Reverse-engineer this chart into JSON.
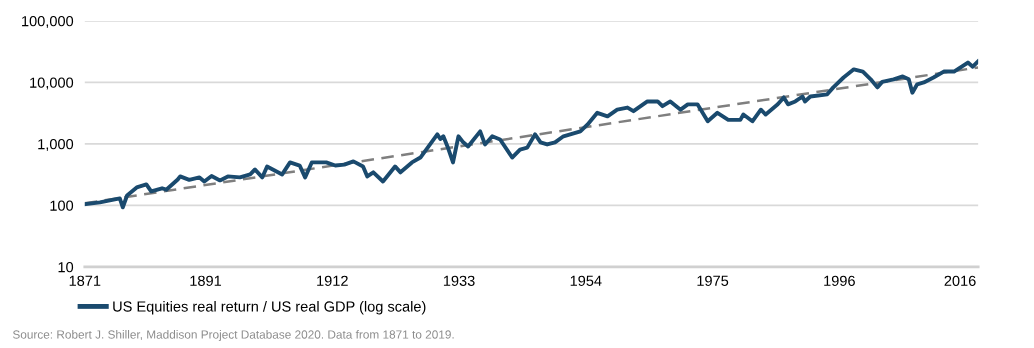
{
  "chart_data": {
    "type": "line",
    "log": "y",
    "grid": "y",
    "legend": "bottom left",
    "line_style": "solid",
    "marker": "none",
    "xlim": [
      1871,
      2019
    ],
    "xticks": [
      1871,
      1891,
      1912,
      1933,
      1954,
      1975,
      1996,
      2016
    ],
    "ylim": [
      10,
      100000
    ],
    "yticks": [
      {
        "value": 10,
        "label": "10"
      },
      {
        "value": 100,
        "label": "100"
      },
      {
        "value": 1000,
        "label": "1,000"
      },
      {
        "value": 10000,
        "label": "10,000"
      },
      {
        "value": 100000,
        "label": "100,000"
      }
    ],
    "series": [
      {
        "name": "US Equities real return / US real GDP (log scale)",
        "color": "#1a4a6e",
        "x": [
          1871,
          1873.5,
          1876.8,
          1877.3,
          1878,
          1879.6,
          1881.2,
          1882,
          1883.8,
          1884.5,
          1886.4,
          1886.8,
          1888.3,
          1890,
          1890.8,
          1892,
          1893.4,
          1894.7,
          1896.7,
          1898.4,
          1899.2,
          1900.4,
          1901.2,
          1903.7,
          1905,
          1906.6,
          1907.5,
          1908.6,
          1911,
          1912.5,
          1914,
          1915.5,
          1917.1,
          1917.8,
          1918.8,
          1920.4,
          1922.4,
          1923.3,
          1925.2,
          1926.6,
          1929.4,
          1929.9,
          1930.4,
          1931.1,
          1932,
          1932.9,
          1933.7,
          1934.5,
          1936.5,
          1937.3,
          1938.5,
          1939.8,
          1941.8,
          1943.1,
          1944.3,
          1945.6,
          1946.5,
          1947.6,
          1948.9,
          1950.3,
          1953.1,
          1954.3,
          1955.9,
          1957.6,
          1959.2,
          1960.9,
          1961.9,
          1964.2,
          1965.9,
          1966.7,
          1968,
          1969.7,
          1970.9,
          1972.5,
          1974.2,
          1975.8,
          1977.6,
          1979.6,
          1980.1,
          1981.6,
          1983,
          1983.8,
          1985.8,
          1986.8,
          1987.5,
          1988.7,
          1989.9,
          1990.3,
          1991.2,
          1994,
          1995,
          1996.7,
          1998.4,
          1999.9,
          2001.2,
          2002.3,
          2003.1,
          2005,
          2006.5,
          2007.5,
          2008.1,
          2008.9,
          2010,
          2011.6,
          2013.3,
          2015,
          2017.3,
          2018.1,
          2019
        ],
        "values": [
          105,
          112,
          130,
          93,
          145,
          196,
          219,
          169,
          190,
          180,
          264,
          296,
          260,
          285,
          245,
          300,
          255,
          296,
          285,
          319,
          384,
          285,
          430,
          319,
          500,
          445,
          285,
          500,
          500,
          445,
          460,
          520,
          430,
          296,
          345,
          245,
          430,
          345,
          500,
          600,
          1430,
          1200,
          1330,
          900,
          500,
          1330,
          1060,
          910,
          1600,
          980,
          1330,
          1180,
          600,
          810,
          870,
          1430,
          1060,
          980,
          1060,
          1330,
          1600,
          2070,
          3200,
          2800,
          3600,
          3900,
          3400,
          4900,
          4900,
          4100,
          4900,
          3600,
          4400,
          4400,
          2330,
          3200,
          2460,
          2460,
          3000,
          2330,
          3600,
          3000,
          4400,
          5700,
          4400,
          4900,
          5900,
          4900,
          5900,
          6400,
          8300,
          12000,
          16300,
          15000,
          11200,
          8300,
          10200,
          11200,
          12500,
          11200,
          6800,
          9300,
          10000,
          12000,
          15000,
          15000,
          21000,
          18000,
          22000
        ]
      },
      {
        "type": "line",
        "line_style": "dashed",
        "color": "#7f7f7f",
        "x": [
          1871,
          2019
        ],
        "values": [
          108,
          17500
        ]
      }
    ],
    "annotations": [
      "Source: Robert J. Shiller, Maddison Project Database 2020. Data from 1871 to 2019."
    ]
  }
}
